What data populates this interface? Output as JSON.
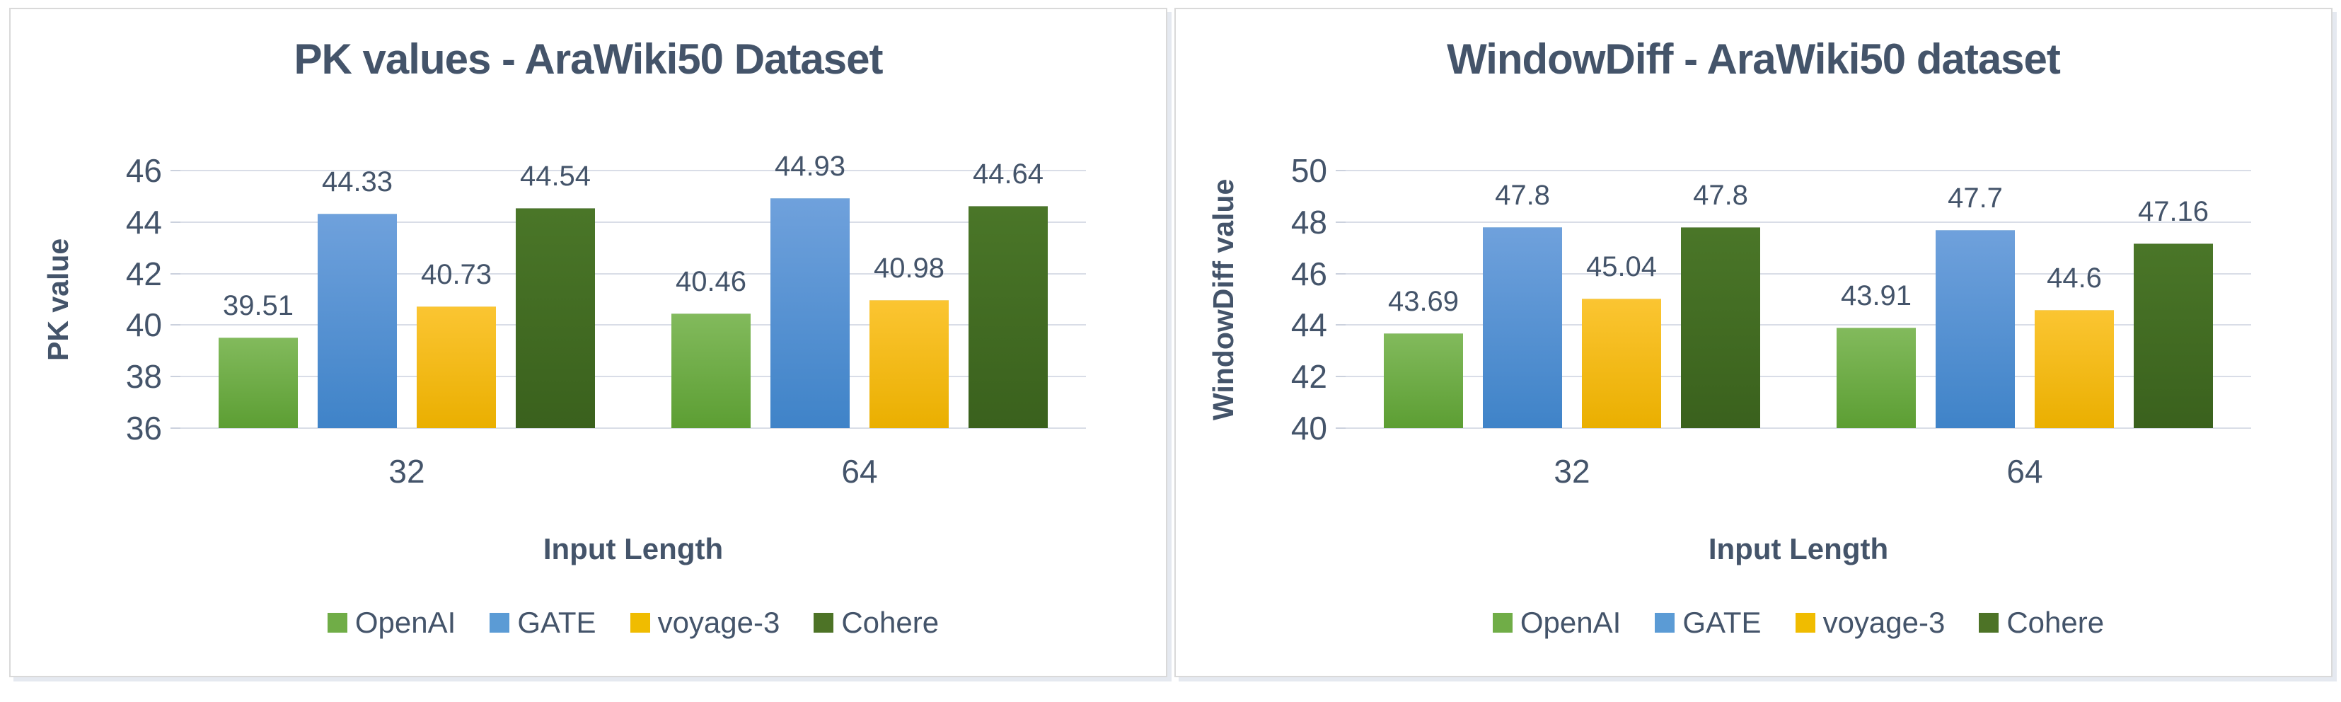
{
  "page": {
    "background": "#FFFFFF",
    "text_color": "#44546A",
    "gridline_color": "#D9DDE7",
    "panel_border_color": "#D9D9D9",
    "panel_shadow_color": "#E5E9F0"
  },
  "series_styles": {
    "OpenAI": {
      "legend": "#70AD47",
      "gradient_top": "#82BA5C",
      "gradient_bottom": "#5C9E33"
    },
    "GATE": {
      "legend": "#5B9BD5",
      "gradient_top": "#6FA1DC",
      "gradient_bottom": "#3F83C8"
    },
    "voyage-3": {
      "legend": "#F0BC00",
      "gradient_top": "#FBC532",
      "gradient_bottom": "#EAAF00"
    },
    "Cohere": {
      "legend": "#4D7326",
      "gradient_top": "#4A7628",
      "gradient_bottom": "#3A611D"
    }
  },
  "chart_data": [
    {
      "type": "bar",
      "title": "PK values - AraWiki50 Dataset",
      "xlabel": "Input Length",
      "ylabel": "PK value",
      "categories": [
        "32",
        "64"
      ],
      "series": [
        {
          "name": "OpenAI",
          "values": [
            39.51,
            40.46
          ],
          "labels": [
            "39.51",
            "40.46"
          ]
        },
        {
          "name": "GATE",
          "values": [
            44.33,
            44.93
          ],
          "labels": [
            "44.33",
            "44.93"
          ]
        },
        {
          "name": "voyage-3",
          "values": [
            40.73,
            40.98
          ],
          "labels": [
            "40.73",
            "40.98"
          ]
        },
        {
          "name": "Cohere",
          "values": [
            44.54,
            44.64
          ],
          "labels": [
            "44.54",
            "44.64"
          ]
        }
      ],
      "ylim": [
        36,
        46
      ],
      "yticks": [
        36,
        38,
        40,
        42,
        44,
        46
      ],
      "grid": true,
      "legend_position": "bottom",
      "legend": [
        "OpenAI",
        "GATE",
        "voyage-3",
        "Cohere"
      ]
    },
    {
      "type": "bar",
      "title": "WindowDiff - AraWiki50 dataset",
      "xlabel": "Input Length",
      "ylabel": "WindowDiff value",
      "categories": [
        "32",
        "64"
      ],
      "series": [
        {
          "name": "OpenAI",
          "values": [
            43.69,
            43.91
          ],
          "labels": [
            "43.69",
            "43.91"
          ]
        },
        {
          "name": "GATE",
          "values": [
            47.8,
            47.7
          ],
          "labels": [
            "47.8",
            "47.7"
          ]
        },
        {
          "name": "voyage-3",
          "values": [
            45.04,
            44.6
          ],
          "labels": [
            "45.04",
            "44.6"
          ]
        },
        {
          "name": "Cohere",
          "values": [
            47.8,
            47.16
          ],
          "labels": [
            "47.8",
            "47.16"
          ]
        }
      ],
      "ylim": [
        40,
        50
      ],
      "yticks": [
        40,
        42,
        44,
        46,
        48,
        50
      ],
      "grid": true,
      "legend_position": "bottom",
      "legend": [
        "OpenAI",
        "GATE",
        "voyage-3",
        "Cohere"
      ]
    }
  ]
}
